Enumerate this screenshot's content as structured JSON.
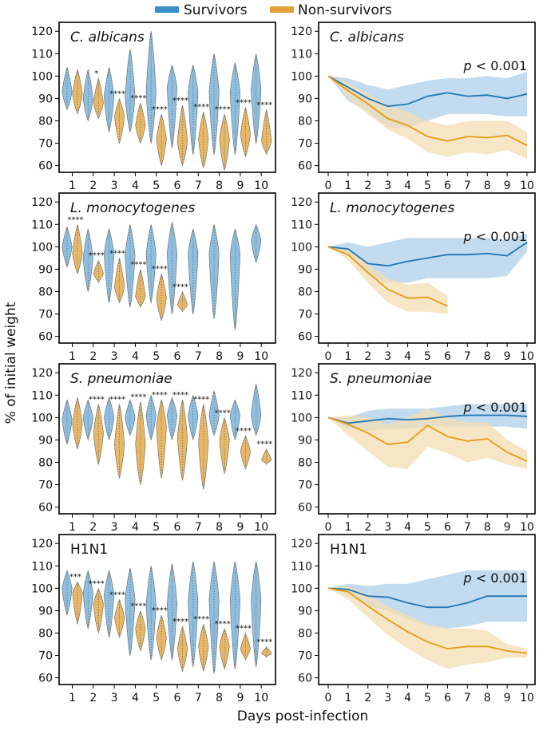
{
  "figure": {
    "legend": [
      {
        "label": "Survivors",
        "color": "#3a8fc8"
      },
      {
        "label": "Non-survivors",
        "color": "#e3a23a"
      }
    ],
    "ylabel": "% of initial weight",
    "xlabel": "Days post-infection",
    "colors": {
      "survivor_violin": "#8fbfe0",
      "nonsurvivor_violin": "#e8b867",
      "survivor_line": "#1f77b4",
      "nonsurvivor_line": "#e39b17",
      "survivor_band": "#b7d5ec",
      "nonsurvivor_band": "#f3ddb3"
    }
  },
  "chart_data": [
    {
      "type": "violin",
      "panel": "left",
      "title": "C. albicans",
      "italic_title": true,
      "ylim": [
        57,
        124
      ],
      "yticks": [
        60,
        70,
        80,
        90,
        100,
        110,
        120
      ],
      "xticks": [
        1,
        2,
        3,
        4,
        5,
        6,
        7,
        8,
        9,
        10
      ],
      "series": [
        {
          "name": "Survivors",
          "ranges": [
            [
              85,
              104
            ],
            [
              80,
              103
            ],
            [
              75,
              104
            ],
            [
              75,
              112
            ],
            [
              70,
              120
            ],
            [
              68,
              105
            ],
            [
              65,
              105
            ],
            [
              65,
              110
            ],
            [
              65,
              106
            ],
            [
              70,
              110
            ]
          ],
          "medians": [
            93,
            90,
            91,
            91,
            93,
            95,
            93,
            93,
            93,
            94
          ]
        },
        {
          "name": "Non-survivors",
          "ranges": [
            [
              83,
              103
            ],
            [
              81,
              99
            ],
            [
              70,
              90
            ],
            [
              70,
              88
            ],
            [
              60,
              83
            ],
            [
              60,
              87
            ],
            [
              59,
              84
            ],
            [
              58,
              83
            ],
            [
              64,
              86
            ],
            [
              65,
              85
            ]
          ],
          "medians": [
            92,
            88,
            82,
            78,
            72,
            71,
            72,
            72,
            74,
            71
          ]
        }
      ],
      "significance": [
        "",
        "*",
        "****",
        "****",
        "****",
        "****",
        "****",
        "****",
        "****",
        "****"
      ]
    },
    {
      "type": "line",
      "panel": "right",
      "title": "C. albicans",
      "italic_title": true,
      "annotation": "p < 0.001",
      "ylim": [
        57,
        124
      ],
      "yticks": [
        60,
        70,
        80,
        90,
        100,
        110,
        120
      ],
      "xticks": [
        0,
        1,
        2,
        3,
        4,
        5,
        6,
        7,
        8,
        9,
        10
      ],
      "series": [
        {
          "name": "Survivors",
          "x": [
            0,
            1,
            2,
            3,
            4,
            5,
            6,
            7,
            8,
            9,
            10
          ],
          "y": [
            100,
            95,
            90,
            86.5,
            87.5,
            91,
            92.5,
            91,
            91.5,
            90,
            92
          ],
          "lower": [
            100,
            89,
            84,
            77,
            77,
            80,
            83,
            83,
            83,
            82,
            82
          ],
          "upper": [
            100,
            99,
            96,
            94,
            96,
            98,
            99,
            99,
            100,
            99,
            102
          ]
        },
        {
          "name": "Non-survivors",
          "x": [
            0,
            1,
            2,
            3,
            4,
            5,
            6,
            7,
            8,
            9,
            10
          ],
          "y": [
            100,
            93.5,
            87.5,
            81,
            78,
            73,
            71,
            73,
            72.5,
            73.5,
            69
          ],
          "lower": [
            100,
            90,
            83,
            76,
            72,
            66,
            64,
            66,
            65,
            67,
            63
          ],
          "upper": [
            100,
            97,
            92,
            87,
            84,
            80,
            78,
            80,
            80,
            80,
            75
          ]
        }
      ]
    },
    {
      "type": "violin",
      "panel": "left",
      "title": "L. monocytogenes",
      "italic_title": true,
      "ylim": [
        57,
        124
      ],
      "yticks": [
        60,
        70,
        80,
        90,
        100,
        110,
        120
      ],
      "xticks": [
        1,
        2,
        3,
        4,
        5,
        6,
        7,
        8,
        9,
        10
      ],
      "series": [
        {
          "name": "Survivors",
          "ranges": [
            [
              91,
              109
            ],
            [
              80,
              108
            ],
            [
              75,
              108
            ],
            [
              73,
              110
            ],
            [
              75,
              110
            ],
            [
              70,
              111
            ],
            [
              70,
              108
            ],
            [
              68,
              110
            ],
            [
              63,
              108
            ],
            [
              93,
              110
            ]
          ],
          "medians": [
            100,
            95,
            97,
            96,
            97,
            97,
            97,
            97,
            97,
            103
          ]
        },
        {
          "name": "Non-survivors",
          "ranges": [
            [
              88,
              110
            ],
            [
              84,
              94
            ],
            [
              75,
              95
            ],
            [
              73,
              90
            ],
            [
              67,
              88
            ],
            [
              71,
              80
            ],
            null,
            null,
            null,
            null
          ],
          "medians": [
            97,
            88,
            82,
            78,
            77,
            74,
            null,
            null,
            null,
            null
          ]
        }
      ],
      "significance": [
        "****",
        "****",
        "****",
        "****",
        "****",
        "****",
        "",
        "",
        "",
        ""
      ]
    },
    {
      "type": "line",
      "panel": "right",
      "title": "L. monocytogenes",
      "italic_title": true,
      "annotation": "p < 0.001",
      "ylim": [
        57,
        124
      ],
      "yticks": [
        60,
        70,
        80,
        90,
        100,
        110,
        120
      ],
      "xticks": [
        0,
        1,
        2,
        3,
        4,
        5,
        6,
        7,
        8,
        9,
        10
      ],
      "series": [
        {
          "name": "Survivors",
          "x": [
            0,
            1,
            2,
            3,
            4,
            5,
            6,
            7,
            8,
            9,
            10
          ],
          "y": [
            100,
            99,
            92.5,
            91.5,
            93.5,
            95,
            96.5,
            96.5,
            97,
            96,
            102
          ],
          "lower": [
            100,
            96,
            87,
            84,
            84,
            86,
            86,
            86,
            86,
            87,
            98
          ],
          "upper": [
            100,
            102,
            100,
            102,
            104,
            104,
            104,
            104,
            104,
            103,
            106
          ]
        },
        {
          "name": "Non-survivors",
          "x": [
            0,
            1,
            2,
            3,
            4,
            5,
            6
          ],
          "y": [
            100,
            96.5,
            88.5,
            81,
            77,
            77.5,
            73.5
          ],
          "lower": [
            100,
            94,
            84,
            75,
            71,
            71,
            70
          ],
          "upper": [
            100,
            99,
            92,
            86,
            83,
            84,
            78
          ]
        }
      ]
    },
    {
      "type": "violin",
      "panel": "left",
      "title": "S. pneumoniae",
      "italic_title": true,
      "ylim": [
        57,
        124
      ],
      "yticks": [
        60,
        70,
        80,
        90,
        100,
        110,
        120
      ],
      "xticks": [
        1,
        2,
        3,
        4,
        5,
        6,
        7,
        8,
        9,
        10
      ],
      "series": [
        {
          "name": "Survivors",
          "ranges": [
            [
              88,
              108
            ],
            [
              90,
              108
            ],
            [
              90,
              109
            ],
            [
              92,
              108
            ],
            [
              90,
              110
            ],
            [
              90,
              109
            ],
            [
              90,
              110
            ],
            [
              92,
              112
            ],
            [
              90,
              108
            ],
            [
              92,
              115
            ]
          ],
          "medians": [
            99,
            100,
            100,
            100,
            101,
            101,
            101,
            101,
            101,
            101
          ]
        },
        {
          "name": "Non-survivors",
          "ranges": [
            [
              86,
              109
            ],
            [
              79,
              106
            ],
            [
              73,
              106
            ],
            [
              70,
              107
            ],
            [
              73,
              108
            ],
            [
              72,
              108
            ],
            [
              68,
              106
            ],
            [
              75,
              100
            ],
            [
              77,
              92
            ],
            [
              79,
              86
            ]
          ],
          "medians": [
            97,
            93,
            88,
            88,
            96,
            91,
            89,
            90,
            85,
            81
          ]
        }
      ],
      "significance": [
        "",
        "****",
        "****",
        "****",
        "****",
        "****",
        "****",
        "****",
        "****",
        "****"
      ]
    },
    {
      "type": "line",
      "panel": "right",
      "title": "S. pneumoniae",
      "italic_title": true,
      "annotation": "p < 0.001",
      "ylim": [
        57,
        124
      ],
      "yticks": [
        60,
        70,
        80,
        90,
        100,
        110,
        120
      ],
      "xticks": [
        0,
        1,
        2,
        3,
        4,
        5,
        6,
        7,
        8,
        9,
        10
      ],
      "series": [
        {
          "name": "Survivors",
          "x": [
            0,
            1,
            2,
            3,
            4,
            5,
            6,
            7,
            8,
            9,
            10
          ],
          "y": [
            100,
            97.5,
            98.5,
            99.5,
            99,
            99.5,
            100.5,
            101,
            101,
            101,
            100.5
          ],
          "lower": [
            100,
            95,
            94,
            95,
            95,
            96,
            96,
            96,
            96,
            96,
            95
          ],
          "upper": [
            100,
            100,
            103,
            104,
            104,
            104,
            105,
            106,
            106,
            106,
            106
          ]
        },
        {
          "name": "Non-survivors",
          "x": [
            0,
            1,
            2,
            3,
            4,
            5,
            6,
            7,
            8,
            9,
            10
          ],
          "y": [
            100,
            97,
            93,
            88,
            89,
            96.5,
            91.5,
            89.5,
            90.5,
            84.5,
            80.5
          ],
          "lower": [
            100,
            92,
            85,
            78,
            77,
            87,
            84,
            80,
            82,
            79,
            77
          ],
          "upper": [
            100,
            101,
            100,
            97,
            100,
            104,
            100,
            98,
            98,
            90,
            85
          ]
        }
      ]
    },
    {
      "type": "violin",
      "panel": "left",
      "title": "H1N1",
      "italic_title": false,
      "ylim": [
        57,
        124
      ],
      "yticks": [
        60,
        70,
        80,
        90,
        100,
        110,
        120
      ],
      "xticks": [
        1,
        2,
        3,
        4,
        5,
        6,
        7,
        8,
        9,
        10
      ],
      "series": [
        {
          "name": "Survivors",
          "ranges": [
            [
              88,
              108
            ],
            [
              82,
              108
            ],
            [
              78,
              108
            ],
            [
              70,
              109
            ],
            [
              68,
              110
            ],
            [
              68,
              111
            ],
            [
              65,
              112
            ],
            [
              62,
              112
            ],
            [
              64,
              112
            ],
            [
              65,
              112
            ]
          ],
          "medians": [
            100,
            98,
            97,
            95,
            93,
            93,
            94,
            95,
            95,
            95
          ]
        },
        {
          "name": "Non-survivors",
          "ranges": [
            [
              84,
              103
            ],
            [
              80,
              100
            ],
            [
              78,
              95
            ],
            [
              72,
              90
            ],
            [
              68,
              88
            ],
            [
              63,
              83
            ],
            [
              63,
              84
            ],
            [
              64,
              82
            ],
            [
              68,
              80
            ],
            [
              69,
              74
            ]
          ],
          "medians": [
            98,
            93,
            87,
            82,
            78,
            73,
            74,
            74,
            73,
            71
          ]
        }
      ],
      "significance": [
        "***",
        "****",
        "****",
        "****",
        "****",
        "****",
        "****",
        "****",
        "****",
        "****"
      ]
    },
    {
      "type": "line",
      "panel": "right",
      "title": "H1N1",
      "italic_title": false,
      "annotation": "p < 0.001",
      "ylim": [
        57,
        124
      ],
      "yticks": [
        60,
        70,
        80,
        90,
        100,
        110,
        120
      ],
      "xticks": [
        0,
        1,
        2,
        3,
        4,
        5,
        6,
        7,
        8,
        9,
        10
      ],
      "series": [
        {
          "name": "Survivors",
          "x": [
            0,
            1,
            2,
            3,
            4,
            5,
            6,
            7,
            8,
            9,
            10
          ],
          "y": [
            100,
            99.5,
            96.5,
            96,
            93.5,
            91.5,
            91.5,
            93.5,
            96.5,
            96.5,
            96.5
          ],
          "lower": [
            100,
            97,
            92,
            90,
            86,
            83,
            82,
            83,
            85,
            85,
            85
          ],
          "upper": [
            100,
            102,
            101,
            102,
            102,
            104,
            106,
            108,
            108,
            108,
            108
          ]
        },
        {
          "name": "Non-survivors",
          "x": [
            0,
            1,
            2,
            3,
            4,
            5,
            6,
            7,
            8,
            9,
            10
          ],
          "y": [
            100,
            98.5,
            92,
            86,
            80.5,
            76,
            73,
            74,
            74,
            72,
            71
          ],
          "lower": [
            100,
            95,
            87,
            79,
            73,
            68,
            64,
            66,
            67,
            69,
            69
          ],
          "upper": [
            100,
            101,
            97,
            92,
            88,
            84,
            82,
            82,
            81,
            75,
            73
          ]
        }
      ]
    }
  ]
}
